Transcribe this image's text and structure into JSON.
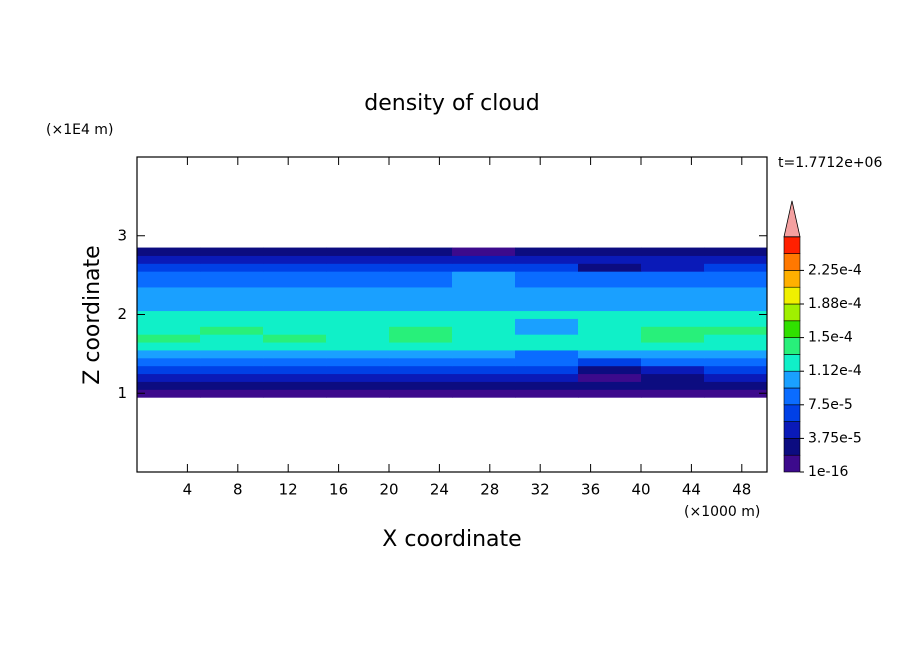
{
  "chart_data": {
    "type": "contour",
    "title": "density of cloud",
    "x_label": "X coordinate",
    "y_label": "Z coordinate",
    "x_unit": "(×1000 m)",
    "y_unit": "(×1E4 m)",
    "annotation": "t=1.7712e+06",
    "xlim": [
      0,
      50
    ],
    "ylim": [
      0,
      4
    ],
    "xticks": [
      4,
      8,
      12,
      16,
      20,
      24,
      28,
      32,
      36,
      40,
      44,
      48
    ],
    "yticks": [
      1,
      2,
      3
    ],
    "x": [
      2.5,
      7.5,
      12.5,
      17.5,
      22.5,
      27.5,
      32.5,
      37.5,
      42.5,
      47.5
    ],
    "z": [
      1.0,
      1.1,
      1.2,
      1.3,
      1.4,
      1.5,
      1.6,
      1.7,
      1.8,
      1.9,
      2.0,
      2.1,
      2.2,
      2.3,
      2.4,
      2.5,
      2.6,
      2.7,
      2.8
    ],
    "values": [
      [
        1.2e-05,
        1.2e-05,
        1.2e-05,
        1.2e-05,
        1.2e-05,
        1.2e-05,
        1.2e-05,
        5e-06,
        5e-06,
        1.2e-05
      ],
      [
        3e-05,
        3e-05,
        3e-05,
        3e-05,
        3e-05,
        3e-05,
        3e-05,
        2e-05,
        3e-05,
        3e-05
      ],
      [
        5e-05,
        5e-05,
        5e-05,
        5e-05,
        5e-05,
        5e-05,
        5e-05,
        1.5e-05,
        2e-05,
        5e-05
      ],
      [
        6.5e-05,
        6.5e-05,
        6.5e-05,
        6.5e-05,
        6.5e-05,
        6.5e-05,
        6.5e-05,
        2e-05,
        4e-05,
        6.5e-05
      ],
      [
        8.5e-05,
        8.5e-05,
        8.5e-05,
        8.5e-05,
        8.5e-05,
        8.5e-05,
        8.5e-05,
        6e-05,
        8.5e-05,
        8.5e-05
      ],
      [
        0.0001,
        0.0001,
        0.0001,
        0.0001,
        0.0001,
        0.0001,
        9e-05,
        0.0001,
        0.0001,
        0.0001
      ],
      [
        0.000115,
        0.000115,
        0.000115,
        0.000115,
        0.000115,
        0.000115,
        0.000115,
        0.000115,
        0.000115,
        0.000115
      ],
      [
        0.000135,
        0.00012,
        0.000135,
        0.00012,
        0.000135,
        0.00012,
        0.00012,
        0.000115,
        0.000135,
        0.00012
      ],
      [
        0.00012,
        0.000135,
        0.00012,
        0.00012,
        0.000135,
        0.00012,
        0.00011,
        0.00012,
        0.000135,
        0.000135
      ],
      [
        0.000115,
        0.000115,
        0.000115,
        0.000115,
        0.000115,
        0.000115,
        0.000105,
        0.000115,
        0.000115,
        0.000115
      ],
      [
        0.000115,
        0.000115,
        0.000115,
        0.000115,
        0.000115,
        0.000115,
        0.000115,
        0.000115,
        0.000115,
        0.000115
      ],
      [
        0.000105,
        0.000105,
        0.000105,
        0.000105,
        0.000105,
        0.000105,
        0.000105,
        0.000105,
        0.000105,
        0.000105
      ],
      [
        0.000105,
        0.000105,
        0.000105,
        0.000105,
        0.000105,
        0.000105,
        0.000105,
        0.000105,
        0.000105,
        0.000105
      ],
      [
        0.0001,
        0.0001,
        0.0001,
        0.0001,
        0.0001,
        0.0001,
        0.0001,
        0.0001,
        0.0001,
        0.0001
      ],
      [
        9e-05,
        9e-05,
        9e-05,
        9e-05,
        9e-05,
        0.0001,
        9e-05,
        9e-05,
        9e-05,
        9e-05
      ],
      [
        8e-05,
        8e-05,
        8e-05,
        8e-05,
        8e-05,
        0.0001,
        9e-05,
        8e-05,
        8e-05,
        8e-05
      ],
      [
        6e-05,
        6e-05,
        6e-05,
        6e-05,
        6e-05,
        6e-05,
        6e-05,
        3e-05,
        5e-05,
        6e-05
      ],
      [
        5e-05,
        5e-05,
        5e-05,
        5e-05,
        5e-05,
        5e-05,
        5e-05,
        5e-05,
        5e-05,
        5e-05
      ],
      [
        3e-05,
        3e-05,
        3e-05,
        3e-05,
        3e-05,
        1.5e-05,
        3e-05,
        3e-05,
        3e-05,
        3e-05
      ]
    ],
    "levels": [
      1e-16,
      1.875e-05,
      3.75e-05,
      5.625e-05,
      7.5e-05,
      9.375e-05,
      0.0001125,
      0.00013125,
      0.00015,
      0.00016875,
      0.0001875,
      0.00020625,
      0.000225,
      0.00024375
    ],
    "colors": [
      "#3c0a8c",
      "#0c0c80",
      "#0a1ab8",
      "#0040e6",
      "#0a6cff",
      "#1aa0ff",
      "#10f0c8",
      "#28f07a",
      "#30e000",
      "#a0f000",
      "#f0f000",
      "#ffb000",
      "#ff7800",
      "#ff2000"
    ],
    "extend_color": "#f4a0a0",
    "cbar_ticks": [
      {
        "value": 1e-16,
        "label": "1e-16"
      },
      {
        "value": 3.75e-05,
        "label": "3.75e-5"
      },
      {
        "value": 7.5e-05,
        "label": "7.5e-5"
      },
      {
        "value": 0.0001125,
        "label": "1.12e-4"
      },
      {
        "value": 0.00015,
        "label": "1.5e-4"
      },
      {
        "value": 0.0001875,
        "label": "1.88e-4"
      },
      {
        "value": 0.000225,
        "label": "2.25e-4"
      }
    ]
  }
}
